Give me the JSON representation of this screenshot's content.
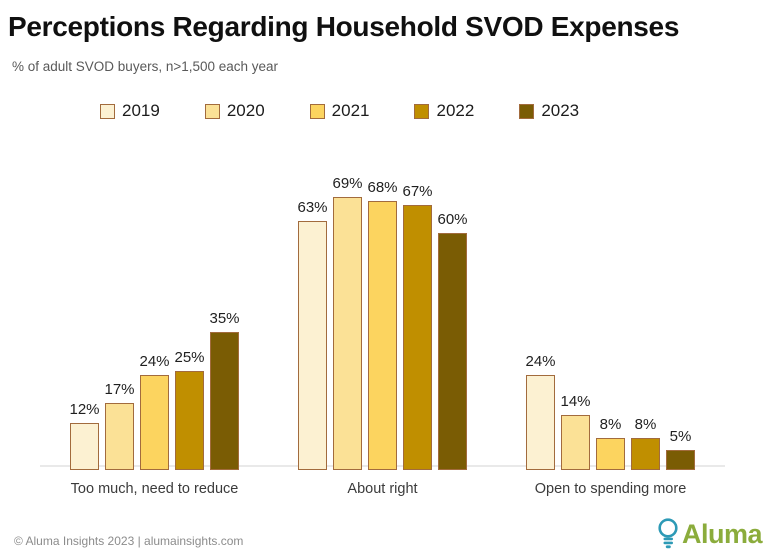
{
  "header": {
    "title": "Perceptions Regarding Household SVOD Expenses",
    "subtitle": "% of adult SVOD buyers, n>1,500 each year"
  },
  "chart_data": {
    "type": "bar",
    "title": "Perceptions Regarding Household SVOD Expenses",
    "subtitle": "% of adult SVOD buyers, n>1,500 each year",
    "categories": [
      "Too much, need to reduce",
      "About right",
      "Open to spending more"
    ],
    "series": [
      {
        "name": "2019",
        "color": "#FCF1D2",
        "values": [
          12,
          63,
          24
        ]
      },
      {
        "name": "2020",
        "color": "#FBE196",
        "values": [
          17,
          69,
          14
        ]
      },
      {
        "name": "2021",
        "color": "#FCD45F",
        "values": [
          24,
          68,
          8
        ]
      },
      {
        "name": "2022",
        "color": "#C08F00",
        "values": [
          25,
          67,
          8
        ]
      },
      {
        "name": "2023",
        "color": "#7A5C04",
        "values": [
          35,
          60,
          5
        ]
      }
    ],
    "value_suffix": "%",
    "ylim": [
      0,
      75
    ],
    "grid": false,
    "legend_position": "top",
    "bar_border_color": "#A26B3D",
    "axis_line_color": "#E9E9E9"
  },
  "footer": {
    "copyright": "© Aluma Insights 2023 | alumainsights.com",
    "logo_text": "Aluma",
    "logo_text_color": "#8BAC3C",
    "logo_icon": "lightbulb-icon",
    "logo_icon_color": "#2D9AB6"
  }
}
